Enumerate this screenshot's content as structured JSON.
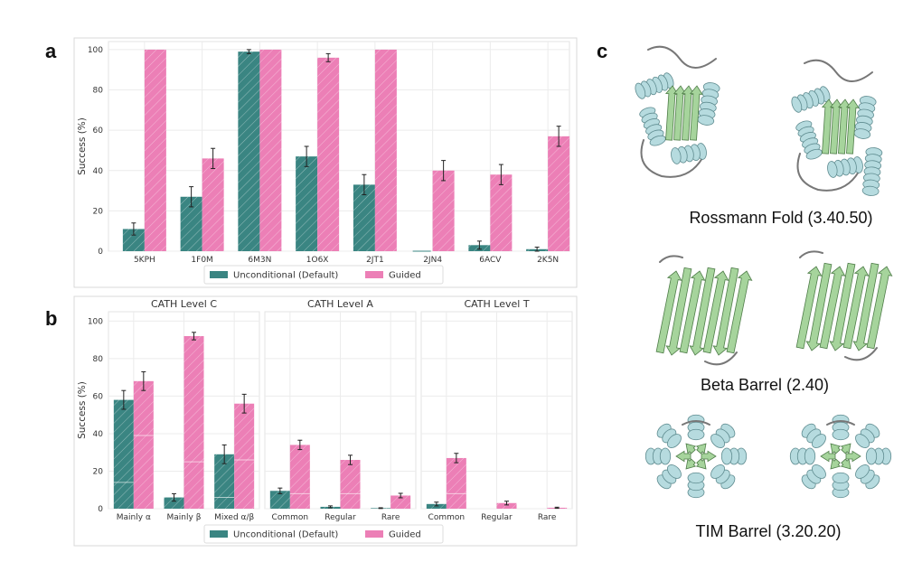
{
  "panels": {
    "a": "a",
    "b": "b",
    "c": "c"
  },
  "colors": {
    "unconditional": "#3a8582",
    "guided": "#ec7fb6",
    "frame": "#d9d9d9",
    "grid": "#ececec",
    "err": "#222222",
    "helix": "#b6dbdf",
    "sheet": "#a6d49c",
    "loop": "#777777"
  },
  "chart_data": [
    {
      "id": "a",
      "type": "bar",
      "title": "",
      "ylabel": "Success (%)",
      "xlabel": "",
      "ylim": [
        0,
        104
      ],
      "yticks": [
        0,
        20,
        40,
        60,
        80,
        100
      ],
      "grid": true,
      "categories": [
        "5KPH",
        "1F0M",
        "6M3N",
        "1O6X",
        "2JT1",
        "2JN4",
        "6ACV",
        "2K5N"
      ],
      "series": [
        {
          "name": "Unconditional (Default)",
          "values": [
            11,
            27,
            99,
            47,
            33,
            0,
            3,
            1
          ],
          "errors": [
            3,
            5,
            1,
            5,
            5,
            0,
            2,
            1
          ]
        },
        {
          "name": "Guided",
          "values": [
            100,
            46,
            100,
            96,
            100,
            40,
            38,
            57
          ],
          "errors": [
            0,
            5,
            0,
            2,
            0,
            5,
            5,
            5
          ]
        }
      ],
      "legend": [
        "Unconditional (Default)",
        "Guided"
      ],
      "legend_position": "bottom-center"
    },
    {
      "id": "b",
      "type": "bar",
      "ylabel": "Success (%)",
      "ylim": [
        0,
        105
      ],
      "yticks": [
        0,
        20,
        40,
        60,
        80,
        100
      ],
      "grid": true,
      "legend": [
        "Unconditional (Default)",
        "Guided"
      ],
      "legend_position": "bottom-center",
      "subplots": [
        {
          "title": "CATH Level C",
          "categories": [
            "Mainly α",
            "Mainly β",
            "Mixed α/β"
          ],
          "series": [
            {
              "name": "Unconditional (Default)",
              "values": [
                58,
                6,
                29
              ],
              "errors": [
                5,
                2,
                5
              ],
              "inner": [
                14,
                0,
                6
              ]
            },
            {
              "name": "Guided",
              "values": [
                68,
                92,
                56
              ],
              "errors": [
                5,
                2,
                5
              ],
              "inner": [
                39,
                25,
                26
              ]
            }
          ]
        },
        {
          "title": "CATH Level A",
          "categories": [
            "Common",
            "Regular",
            "Rare"
          ],
          "series": [
            {
              "name": "Unconditional (Default)",
              "values": [
                9.5,
                1,
                0.3
              ],
              "errors": [
                1.5,
                0.5,
                0.2
              ],
              "inner": [
                0,
                0,
                0
              ]
            },
            {
              "name": "Guided",
              "values": [
                34,
                26,
                7
              ],
              "errors": [
                2.5,
                2.5,
                1.2
              ],
              "inner": [
                8,
                8,
                0
              ]
            }
          ]
        },
        {
          "title": "CATH Level T",
          "categories": [
            "Common",
            "Regular",
            "Rare"
          ],
          "series": [
            {
              "name": "Unconditional (Default)",
              "values": [
                2.5,
                0,
                0
              ],
              "errors": [
                1,
                0,
                0
              ],
              "inner": [
                0,
                0,
                0
              ]
            },
            {
              "name": "Guided",
              "values": [
                27,
                3,
                0.5
              ],
              "errors": [
                2.5,
                1,
                0.3
              ],
              "inner": [
                8,
                0,
                0
              ]
            }
          ]
        }
      ]
    }
  ],
  "panel_c": {
    "structures": [
      {
        "caption": "Rossmann Fold (3.40.50)",
        "kind": "rossmann"
      },
      {
        "caption": "Beta Barrel (2.40)",
        "kind": "barrel"
      },
      {
        "caption": "TIM Barrel (3.20.20)",
        "kind": "tim"
      }
    ]
  }
}
